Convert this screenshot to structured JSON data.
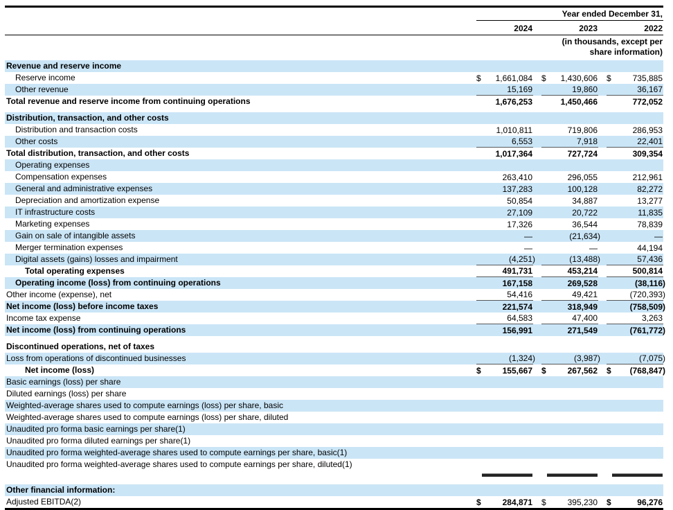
{
  "colors": {
    "row_highlight": "#cae5f6"
  },
  "header": {
    "period_label": "Year ended December 31,",
    "years": [
      "2024",
      "2023",
      "2022"
    ],
    "note": "(in thousands, except per share information)"
  },
  "rows": [
    {
      "type": "row",
      "label": "Revenue and reserve income",
      "indent": 0,
      "bold": true,
      "bg": "blue"
    },
    {
      "type": "row",
      "label": "Reserve income",
      "indent": 1,
      "bg": "white",
      "dollar": true,
      "values": [
        "1,661,084",
        "1,430,606",
        "735,885"
      ]
    },
    {
      "type": "row",
      "label": "Other revenue",
      "indent": 1,
      "bg": "blue",
      "values": [
        "15,169",
        "19,860",
        "36,167"
      ],
      "underline": true
    },
    {
      "type": "row",
      "label": "Total revenue and reserve income from continuing operations",
      "indent": 0,
      "bold": true,
      "bg": "white",
      "values": [
        "1,676,253",
        "1,450,466",
        "772,052"
      ],
      "values_bold": true
    },
    {
      "type": "gap"
    },
    {
      "type": "row",
      "label": "Distribution, transaction, and other costs",
      "indent": 0,
      "bold": true,
      "bg": "blue"
    },
    {
      "type": "row",
      "label": "Distribution and transaction costs",
      "indent": 1,
      "bg": "white",
      "values": [
        "1,010,811",
        "719,806",
        "286,953"
      ]
    },
    {
      "type": "row",
      "label": "Other costs",
      "indent": 1,
      "bg": "blue",
      "values": [
        "6,553",
        "7,918",
        "22,401"
      ],
      "underline": true
    },
    {
      "type": "row",
      "label": "Total distribution, transaction, and other costs",
      "indent": 0,
      "bold": true,
      "bg": "white",
      "values": [
        "1,017,364",
        "727,724",
        "309,354"
      ],
      "values_bold": true
    },
    {
      "type": "row",
      "label": "Operating expenses",
      "indent": 1,
      "bg": "blue"
    },
    {
      "type": "row",
      "label": "Compensation expenses",
      "indent": 1,
      "bg": "white",
      "values": [
        "263,410",
        "296,055",
        "212,961"
      ]
    },
    {
      "type": "row",
      "label": "General and administrative expenses",
      "indent": 1,
      "bg": "blue",
      "values": [
        "137,283",
        "100,128",
        "82,272"
      ]
    },
    {
      "type": "row",
      "label": "Depreciation and amortization expense",
      "indent": 1,
      "bg": "white",
      "values": [
        "50,854",
        "34,887",
        "13,277"
      ]
    },
    {
      "type": "row",
      "label": "IT infrastructure costs",
      "indent": 1,
      "bg": "blue",
      "values": [
        "27,109",
        "20,722",
        "11,835"
      ]
    },
    {
      "type": "row",
      "label": "Marketing expenses",
      "indent": 1,
      "bg": "white",
      "values": [
        "17,326",
        "36,544",
        "78,839"
      ]
    },
    {
      "type": "row",
      "label": "Gain on sale of intangible assets",
      "indent": 1,
      "bg": "blue",
      "values": [
        "—",
        "(21,634)",
        "—"
      ]
    },
    {
      "type": "row",
      "label": "Merger termination expenses",
      "indent": 1,
      "bg": "white",
      "values": [
        "—",
        "—",
        "44,194"
      ]
    },
    {
      "type": "row",
      "label": "Digital assets (gains) losses and impairment",
      "indent": 1,
      "bg": "blue",
      "values": [
        "(4,251)",
        "(13,488)",
        "57,436"
      ],
      "underline": true
    },
    {
      "type": "row",
      "label": "Total operating expenses",
      "indent": 2,
      "bold": true,
      "bg": "white",
      "values": [
        "491,731",
        "453,214",
        "500,814"
      ],
      "values_bold": true,
      "underline": true
    },
    {
      "type": "row",
      "label": "Operating income (loss) from continuing operations",
      "indent": 1,
      "bold": true,
      "bg": "blue",
      "values": [
        "167,158",
        "269,528",
        "(38,116)"
      ],
      "values_bold": true
    },
    {
      "type": "row",
      "label": "Other income (expense), net",
      "indent": 0,
      "bg": "white",
      "values": [
        "54,416",
        "49,421",
        "(720,393)"
      ],
      "underline": true
    },
    {
      "type": "row",
      "label": "Net income (loss) before income taxes",
      "indent": 0,
      "bold": true,
      "bg": "blue",
      "values": [
        "221,574",
        "318,949",
        "(758,509)"
      ],
      "values_bold": true
    },
    {
      "type": "row",
      "label": "Income tax expense",
      "indent": 0,
      "bg": "white",
      "values": [
        "64,583",
        "47,400",
        "3,263"
      ],
      "underline": true
    },
    {
      "type": "row",
      "label": "Net income (loss) from continuing operations",
      "indent": 0,
      "bold": true,
      "bg": "blue",
      "values": [
        "156,991",
        "271,549",
        "(761,772)"
      ],
      "values_bold": true
    },
    {
      "type": "gap"
    },
    {
      "type": "row",
      "label": "Discontinued operations, net of taxes",
      "indent": 0,
      "bold": true,
      "bg": "white"
    },
    {
      "type": "row",
      "label": "Loss from operations of discontinued businesses",
      "indent": 0,
      "bg": "blue",
      "values": [
        "(1,324)",
        "(3,987)",
        "(7,075)"
      ],
      "underline": true
    },
    {
      "type": "row",
      "label": "Net income (loss)",
      "indent": 2,
      "bold": true,
      "bg": "white",
      "dollar": true,
      "values": [
        "155,667",
        "267,562",
        "(768,847)"
      ],
      "values_bold": true
    },
    {
      "type": "row",
      "label": "Basic earnings (loss) per share",
      "indent": 0,
      "bg": "blue"
    },
    {
      "type": "row",
      "label": "Diluted earnings (loss) per share",
      "indent": 0,
      "bg": "white"
    },
    {
      "type": "row",
      "label": "Weighted-average shares used to compute earnings (loss) per share, basic",
      "indent": 0,
      "bg": "blue"
    },
    {
      "type": "row",
      "label": "Weighted-average shares used to compute earnings (loss) per share, diluted",
      "indent": 0,
      "bg": "white"
    },
    {
      "type": "row",
      "label": "Unaudited pro forma basic earnings per share(1)",
      "indent": 0,
      "bg": "blue"
    },
    {
      "type": "row",
      "label": "Unaudited pro forma diluted earnings per share(1)",
      "indent": 0,
      "bg": "white"
    },
    {
      "type": "row",
      "label": "Unaudited pro forma weighted-average shares used to compute earnings per share, basic(1)",
      "indent": 0,
      "bg": "blue"
    },
    {
      "type": "row",
      "label": "Unaudited pro forma weighted-average shares used to compute earnings per share, diluted(1)",
      "indent": 0,
      "bg": "white"
    },
    {
      "type": "rules",
      "bg": "white"
    },
    {
      "type": "gap"
    },
    {
      "type": "row",
      "label": "Other financial information:",
      "indent": 0,
      "bold": true,
      "bg": "blue"
    },
    {
      "type": "row",
      "label": "Adjusted EBITDA(2)",
      "indent": 0,
      "bg": "white",
      "dollar": true,
      "values": [
        "284,871",
        "395,230",
        "96,276"
      ],
      "values_bold_mask": [
        true,
        false,
        true
      ]
    }
  ]
}
